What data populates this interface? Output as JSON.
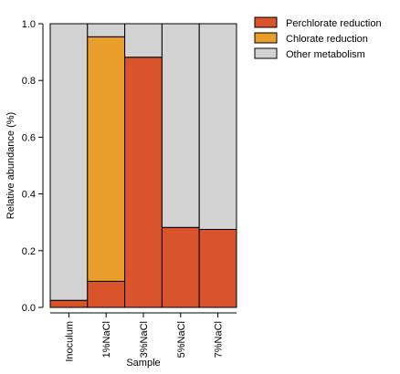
{
  "chart_data": {
    "type": "bar",
    "stacked": true,
    "categories": [
      "Inoculum",
      "1%NaCl",
      "3%NaCl",
      "5%NaCl",
      "7%NaCl"
    ],
    "series": [
      {
        "name": "Perchlorate reduction",
        "color": "#d9532b",
        "values": [
          0.025,
          0.092,
          0.882,
          0.282,
          0.275
        ]
      },
      {
        "name": "Chlorate reduction",
        "color": "#e99d2b",
        "values": [
          0.0,
          0.862,
          0.0,
          0.0,
          0.0
        ]
      },
      {
        "name": "Other metabolism",
        "color": "#d3d3d3",
        "values": [
          0.975,
          0.046,
          0.118,
          0.718,
          0.725
        ]
      }
    ],
    "xlabel": "Sample",
    "ylabel": "Relative abundance (%)",
    "ylim": [
      0,
      1.0
    ],
    "yticks": [
      "0.0",
      "0.2",
      "0.4",
      "0.6",
      "0.8",
      "1.0"
    ],
    "grid": false,
    "legend_position": "outside-top-right"
  }
}
